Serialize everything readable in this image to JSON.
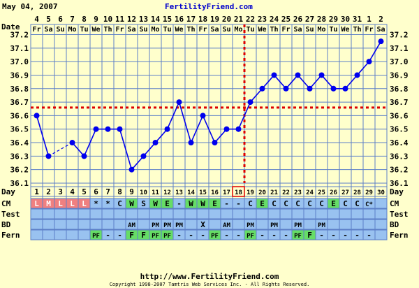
{
  "header": {
    "date": "May 04, 2007",
    "site": "FertilityFriend.com"
  },
  "footer": {
    "url": "http://www.FertilityFriend.com",
    "copyright": "Copyright 1998-2007 Tamtris Web Services Inc. - All Rights Reserved."
  },
  "row_labels": {
    "date": "Date",
    "day": "Day",
    "cm": "CM",
    "test": "Test",
    "bd": "BD",
    "fern": "Fern"
  },
  "chart_data": {
    "type": "line",
    "dates": [
      "4",
      "5",
      "6",
      "7",
      "8",
      "9",
      "10",
      "11",
      "12",
      "13",
      "14",
      "15",
      "16",
      "17",
      "18",
      "19",
      "20",
      "21",
      "22",
      "23",
      "24",
      "25",
      "26",
      "27",
      "28",
      "29",
      "30",
      "31",
      "1",
      "2"
    ],
    "weekdays": [
      "Fr",
      "Sa",
      "Su",
      "Mo",
      "Tu",
      "We",
      "Th",
      "Fr",
      "Sa",
      "Su",
      "Mo",
      "Tu",
      "We",
      "Th",
      "Fr",
      "Sa",
      "Su",
      "Mo",
      "Tu",
      "We",
      "Th",
      "Fr",
      "Sa",
      "Su",
      "Mo",
      "Tu",
      "We",
      "Th",
      "Fr",
      "Sa"
    ],
    "days": [
      1,
      2,
      3,
      4,
      5,
      6,
      7,
      8,
      9,
      10,
      11,
      12,
      13,
      14,
      15,
      16,
      17,
      18,
      19,
      20,
      21,
      22,
      23,
      24,
      25,
      26,
      27,
      28,
      29,
      30
    ],
    "temps": [
      36.6,
      36.3,
      null,
      36.4,
      36.3,
      36.5,
      36.5,
      36.5,
      36.2,
      36.3,
      36.4,
      36.5,
      36.7,
      36.4,
      36.6,
      36.4,
      36.5,
      36.5,
      36.7,
      36.8,
      36.9,
      36.8,
      36.9,
      36.8,
      36.9,
      36.8,
      36.8,
      36.9,
      37.0,
      37.15
    ],
    "dashed_gap": [
      2,
      4
    ],
    "y_ticks": [
      "36.1",
      "36.2",
      "36.3",
      "36.4",
      "36.5",
      "36.6",
      "36.7",
      "36.8",
      "36.9",
      "37.0",
      "37.1",
      "37.2"
    ],
    "ylim": [
      36.1,
      37.2
    ],
    "coverline": 36.66,
    "ovulation_day": 18,
    "cm": [
      "L",
      "M",
      "L",
      "L",
      "L",
      "*",
      "*",
      "C",
      "W",
      "S",
      "W",
      "E",
      "-",
      "W",
      "W",
      "E",
      "-",
      "-",
      "C",
      "E",
      "C",
      "C",
      "C",
      "C",
      "C",
      "E",
      "C",
      "C",
      "C*",
      ""
    ],
    "test": [
      "",
      "",
      "",
      "",
      "",
      "",
      "",
      "",
      "",
      "",
      "",
      "",
      "",
      "",
      "",
      "",
      "",
      "",
      "",
      "",
      "",
      "",
      "",
      "",
      "",
      "",
      "",
      "",
      "",
      ""
    ],
    "bd": [
      "",
      "",
      "",
      "",
      "",
      "",
      "",
      "",
      "AM",
      "",
      "PM",
      "PM",
      "PM",
      "",
      "X",
      "",
      "AM",
      "",
      "PM",
      "",
      "PM",
      "",
      "PM",
      "",
      "PM",
      "",
      "",
      "",
      "",
      ""
    ],
    "fern": [
      "",
      "",
      "",
      "",
      "",
      "PF",
      "-",
      "-",
      "F",
      "F",
      "PF",
      "PF",
      "-",
      "-",
      "-",
      "PF",
      "-",
      "-",
      "PF",
      "-",
      "-",
      "-",
      "PF",
      "F",
      "-",
      "-",
      "-",
      "-",
      "-",
      ""
    ],
    "colors": {
      "background": "#ffffcc",
      "plot_bg": "#ffffcc",
      "grid": "#5c7fc7",
      "line": "#0000ee",
      "coverline": "#dd0000",
      "cell_blue": "#99c2f0",
      "cm_red": "#f08080",
      "green": "#66dd66",
      "text_blue": "#000099",
      "day_bg": "#ffffcc"
    }
  }
}
